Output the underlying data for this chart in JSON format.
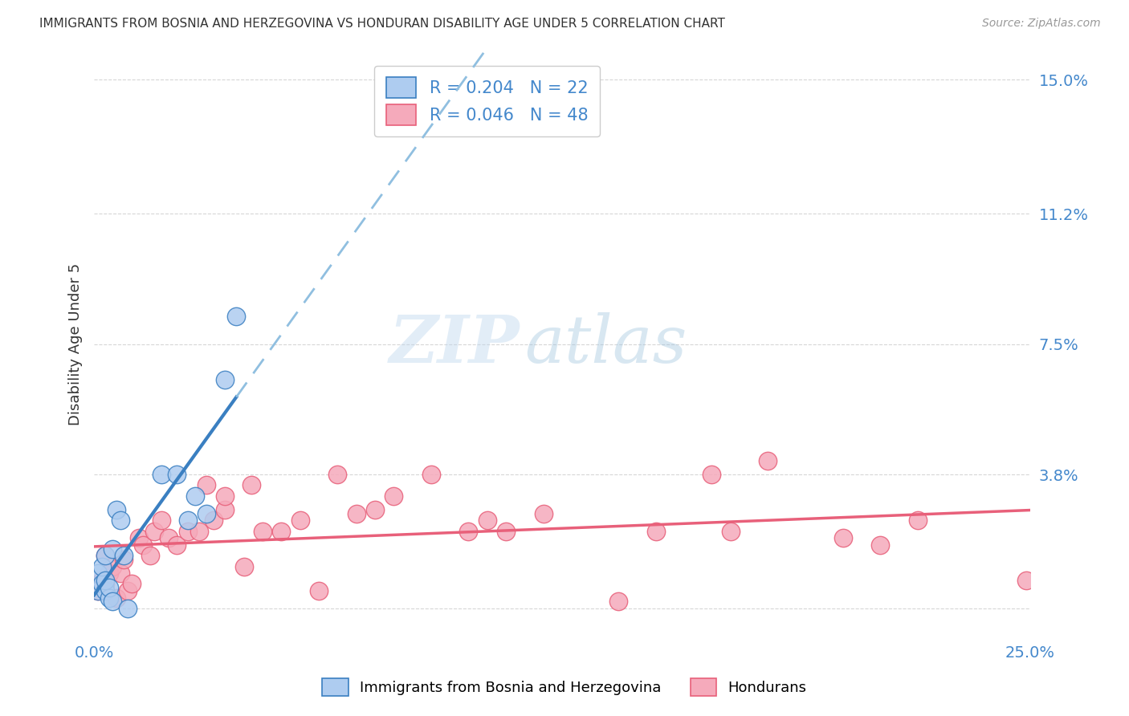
{
  "title": "IMMIGRANTS FROM BOSNIA AND HERZEGOVINA VS HONDURAN DISABILITY AGE UNDER 5 CORRELATION CHART",
  "source": "Source: ZipAtlas.com",
  "ylabel": "Disability Age Under 5",
  "xlim": [
    0.0,
    0.25
  ],
  "ylim": [
    -0.008,
    0.158
  ],
  "yticks": [
    0.0,
    0.038,
    0.075,
    0.112,
    0.15
  ],
  "ytick_labels": [
    "",
    "3.8%",
    "7.5%",
    "11.2%",
    "15.0%"
  ],
  "xticks": [
    0.0,
    0.05,
    0.1,
    0.15,
    0.2,
    0.25
  ],
  "xtick_labels": [
    "0.0%",
    "",
    "",
    "",
    "",
    "25.0%"
  ],
  "bosnia_R": 0.204,
  "bosnia_N": 22,
  "honduran_R": 0.046,
  "honduran_N": 48,
  "bosnia_color": "#aeccf0",
  "honduran_color": "#f5aabb",
  "bosnia_line_color": "#3a7fc1",
  "honduran_line_color": "#e8607a",
  "dashed_line_color": "#90bfe0",
  "blue_label": "Immigrants from Bosnia and Herzegovina",
  "pink_label": "Hondurans",
  "bosnia_x": [
    0.001,
    0.001,
    0.002,
    0.002,
    0.003,
    0.003,
    0.003,
    0.004,
    0.004,
    0.005,
    0.005,
    0.006,
    0.007,
    0.008,
    0.009,
    0.018,
    0.022,
    0.025,
    0.027,
    0.03,
    0.035,
    0.038
  ],
  "bosnia_y": [
    0.005,
    0.01,
    0.007,
    0.012,
    0.005,
    0.008,
    0.015,
    0.003,
    0.006,
    0.002,
    0.017,
    0.028,
    0.025,
    0.015,
    0.0,
    0.038,
    0.038,
    0.025,
    0.032,
    0.027,
    0.065,
    0.083
  ],
  "honduran_x": [
    0.001,
    0.002,
    0.003,
    0.003,
    0.004,
    0.005,
    0.006,
    0.007,
    0.008,
    0.009,
    0.01,
    0.012,
    0.013,
    0.015,
    0.016,
    0.018,
    0.02,
    0.022,
    0.025,
    0.028,
    0.03,
    0.032,
    0.035,
    0.035,
    0.04,
    0.042,
    0.045,
    0.05,
    0.055,
    0.06,
    0.065,
    0.07,
    0.075,
    0.08,
    0.09,
    0.1,
    0.105,
    0.11,
    0.12,
    0.14,
    0.15,
    0.165,
    0.17,
    0.18,
    0.2,
    0.21,
    0.22,
    0.249
  ],
  "honduran_y": [
    0.005,
    0.008,
    0.007,
    0.015,
    0.01,
    0.012,
    0.003,
    0.01,
    0.014,
    0.005,
    0.007,
    0.02,
    0.018,
    0.015,
    0.022,
    0.025,
    0.02,
    0.018,
    0.022,
    0.022,
    0.035,
    0.025,
    0.028,
    0.032,
    0.012,
    0.035,
    0.022,
    0.022,
    0.025,
    0.005,
    0.038,
    0.027,
    0.028,
    0.032,
    0.038,
    0.022,
    0.025,
    0.022,
    0.027,
    0.002,
    0.022,
    0.038,
    0.022,
    0.042,
    0.02,
    0.018,
    0.025,
    0.008
  ],
  "watermark_zip": "ZIP",
  "watermark_atlas": "atlas",
  "background_color": "#ffffff",
  "grid_color": "#cccccc",
  "axis_label_color": "#4488cc",
  "title_color": "#333333"
}
